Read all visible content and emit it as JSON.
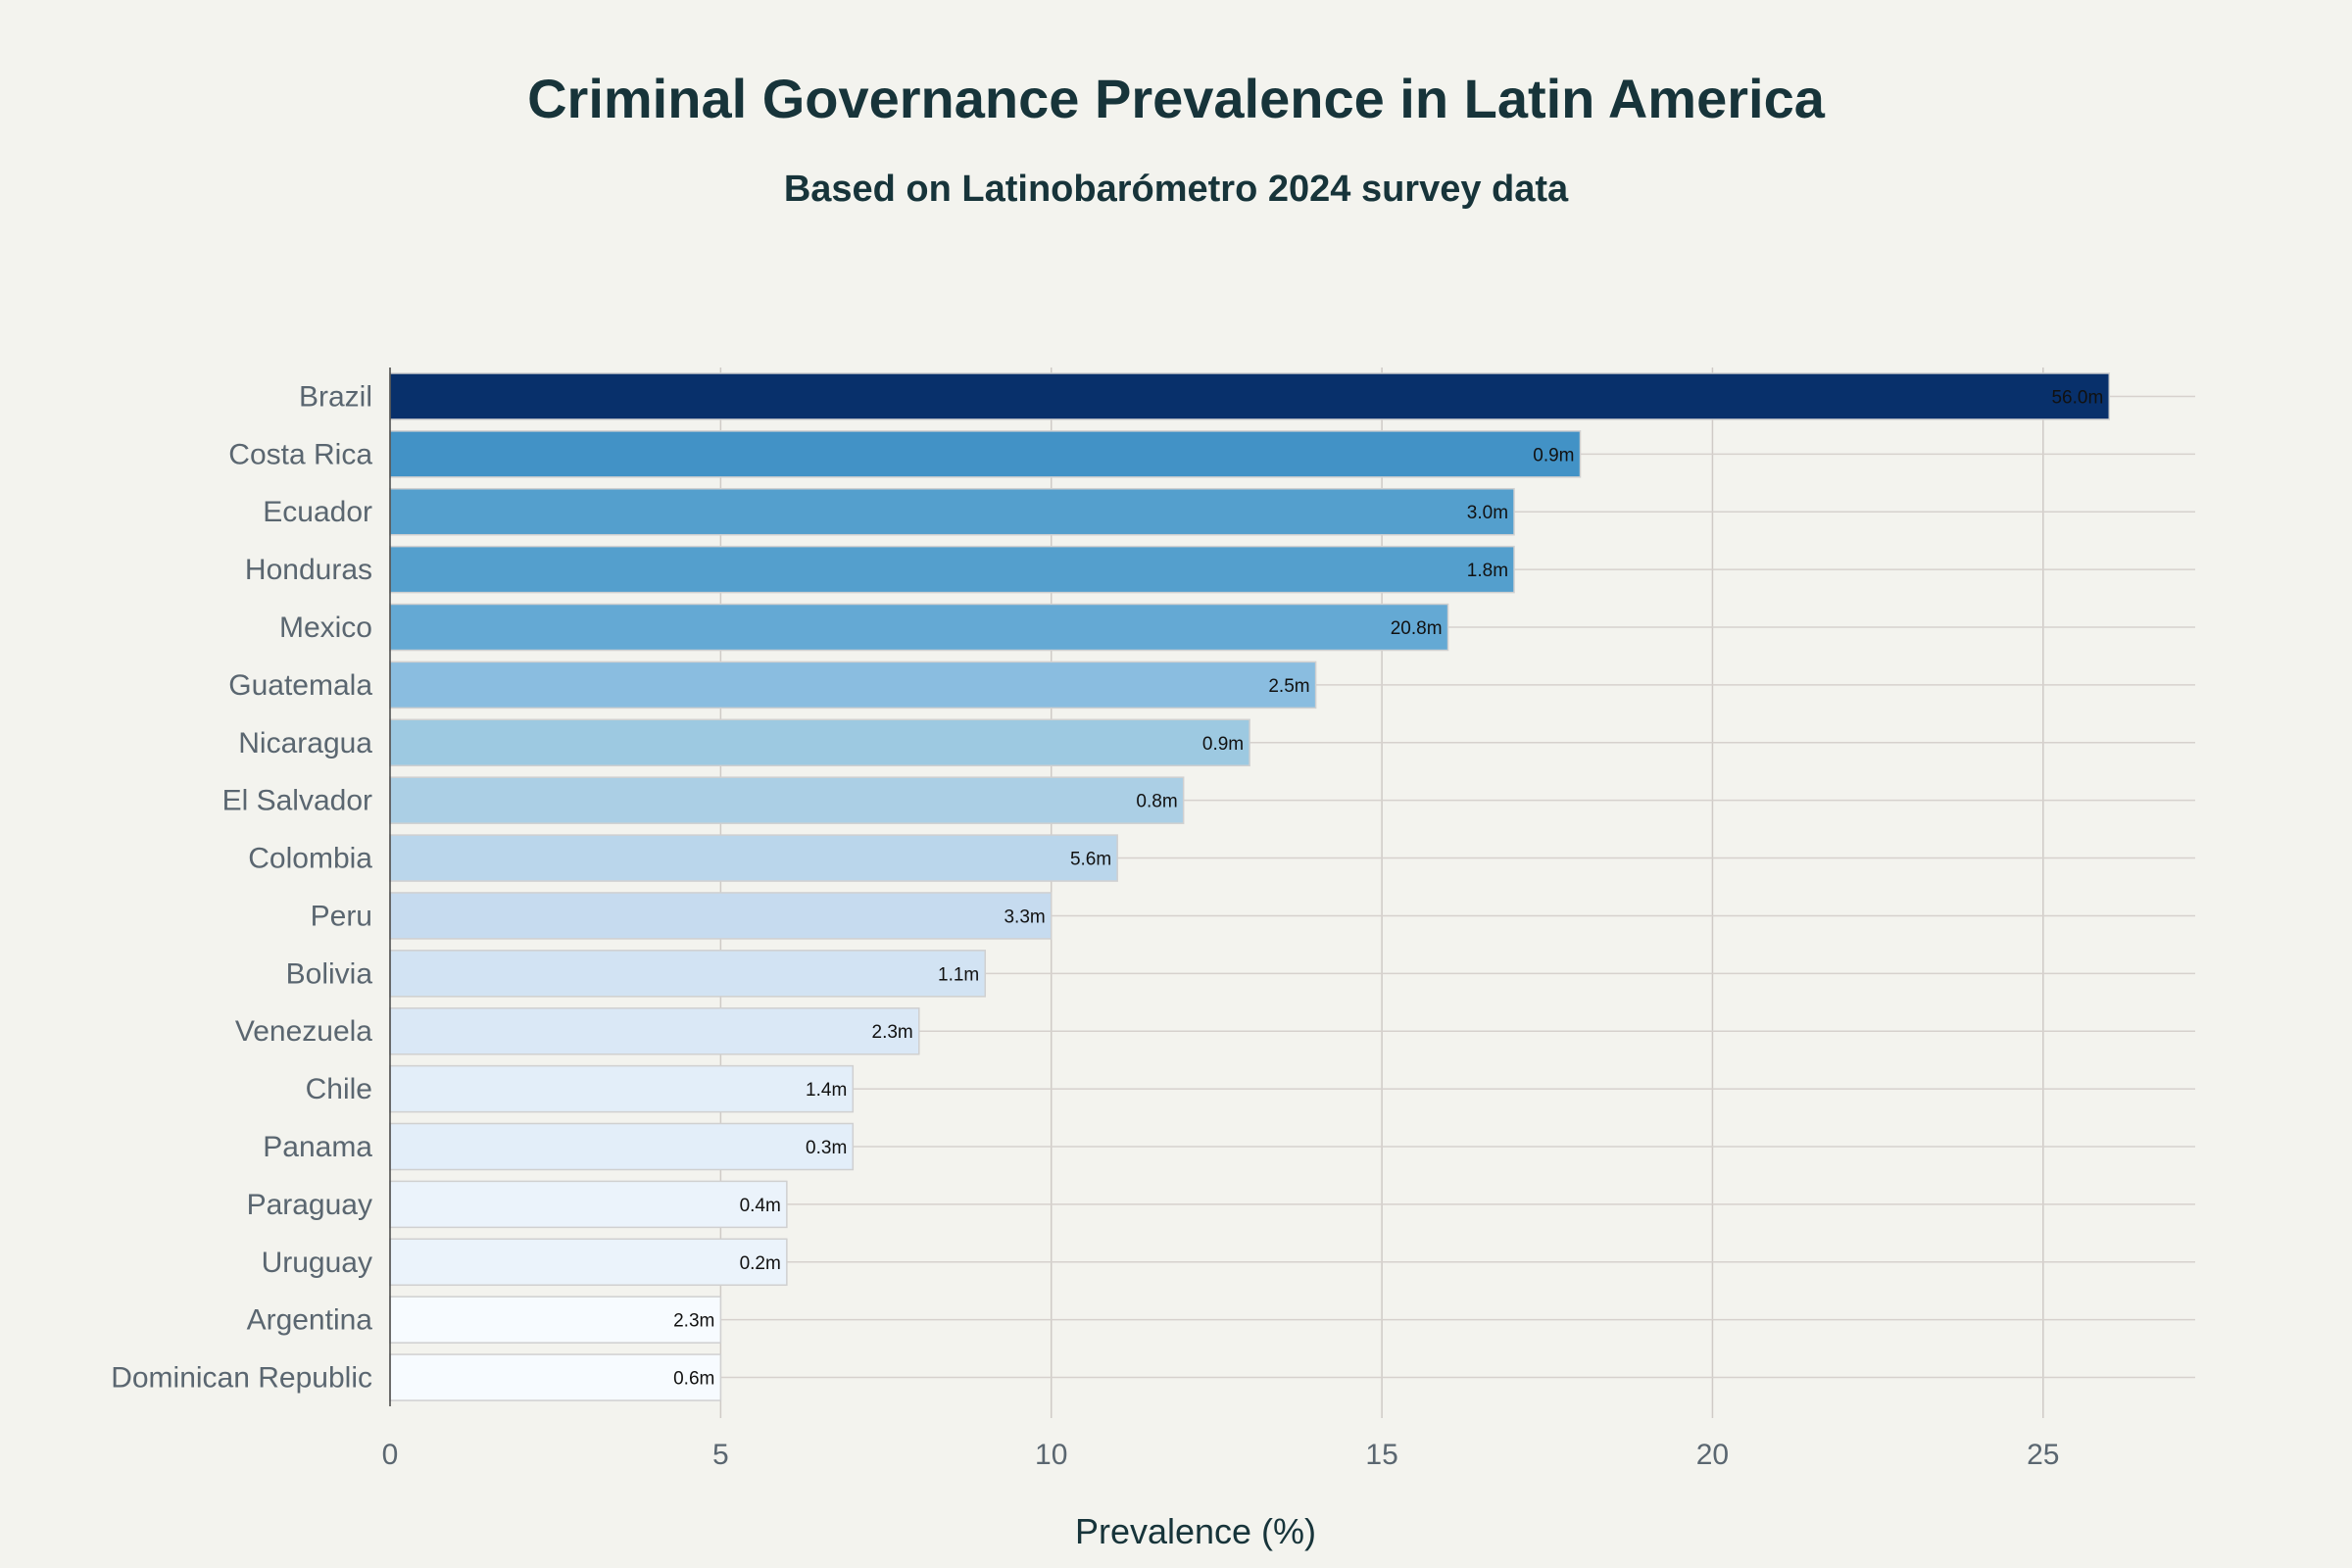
{
  "chart_data": {
    "type": "bar",
    "orientation": "horizontal",
    "title": "Criminal Governance Prevalence in Latin America",
    "subtitle": "Based on Latinobarómetro 2024 survey data",
    "xlabel": "Prevalence (%)",
    "ylabel": "",
    "xlim": [
      0,
      27.3
    ],
    "xticks": [
      0,
      5,
      10,
      15,
      20,
      25
    ],
    "grid": true,
    "categories": [
      "Brazil",
      "Costa Rica",
      "Ecuador",
      "Honduras",
      "Mexico",
      "Guatemala",
      "Nicaragua",
      "El Salvador",
      "Colombia",
      "Peru",
      "Bolivia",
      "Venezuela",
      "Chile",
      "Panama",
      "Paraguay",
      "Uruguay",
      "Argentina",
      "Dominican Republic"
    ],
    "values": [
      26,
      18,
      17,
      17,
      16,
      14,
      13,
      12,
      11,
      10,
      9,
      8,
      7,
      7,
      6,
      6,
      5,
      5
    ],
    "data_labels": [
      "56.0m",
      "0.9m",
      "3.0m",
      "1.8m",
      "20.8m",
      "2.5m",
      "0.9m",
      "0.8m",
      "5.6m",
      "3.3m",
      "1.1m",
      "2.3m",
      "1.4m",
      "0.3m",
      "0.4m",
      "0.2m",
      "2.3m",
      "0.6m"
    ],
    "colors": [
      "#08306b",
      "#4292c6",
      "#549fcd",
      "#549fcd",
      "#64a9d4",
      "#8abde0",
      "#9dc9e1",
      "#abcfe5",
      "#bad6eb",
      "#c6dbef",
      "#d2e3f3",
      "#dae8f6",
      "#e3eef9",
      "#e3eef9",
      "#ebf3fb",
      "#ebf3fb",
      "#f7fbff",
      "#f7fbff"
    ]
  }
}
